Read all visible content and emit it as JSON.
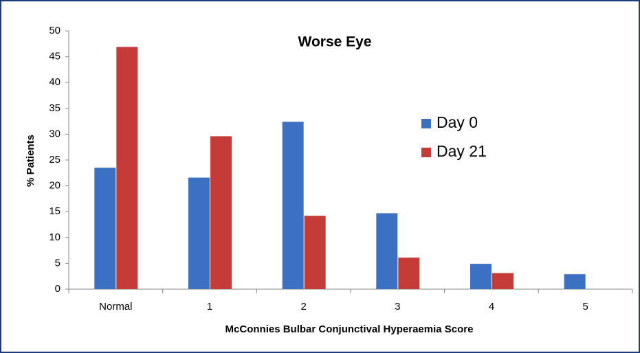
{
  "chart_data": {
    "type": "bar",
    "title": "Worse Eye",
    "x_label": "McConnies Bulbar Conjunctival Hyperaemia Score",
    "y_label": "% Patients",
    "categories": [
      "Normal",
      "1",
      "2",
      "3",
      "4",
      "5"
    ],
    "series": [
      {
        "name": "Day 0",
        "color": "#3b70c2",
        "values": [
          23.5,
          21.6,
          32.4,
          14.7,
          4.9,
          2.9
        ]
      },
      {
        "name": "Day 21",
        "color": "#c53b38",
        "values": [
          46.9,
          29.6,
          14.2,
          6.1,
          3.1,
          0
        ]
      }
    ],
    "ylim": [
      0,
      50
    ],
    "yticks": [
      0,
      5,
      10,
      15,
      20,
      25,
      30,
      35,
      40,
      45,
      50
    ],
    "grid": false,
    "legend": "right"
  }
}
